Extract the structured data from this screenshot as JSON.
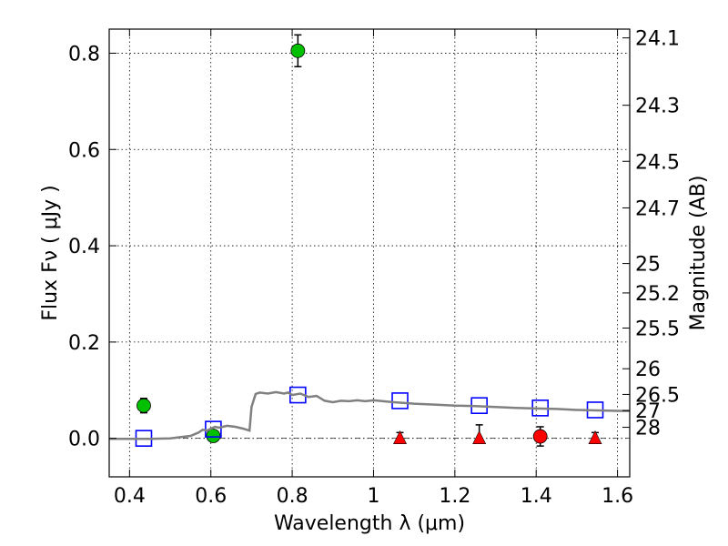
{
  "chart_data": {
    "type": "scatter",
    "xlabel": "Wavelength  λ (μm)",
    "ylabel": "Flux  Fν  ( μJy )",
    "y2label": "Magnitude (AB)",
    "xlim": [
      0.35,
      1.63
    ],
    "ylim": [
      -0.08,
      0.85
    ],
    "grid": true,
    "x_ticks": [
      0.4,
      0.6,
      0.8,
      1.0,
      1.2,
      1.4,
      1.6
    ],
    "x_tick_labels": [
      "0.4",
      "0.6",
      "0.8",
      "1",
      "1.2",
      "1.4",
      "1.6"
    ],
    "y_ticks": [
      0.0,
      0.2,
      0.4,
      0.6,
      0.8
    ],
    "y_tick_labels": [
      "0.0",
      "0.2",
      "0.4",
      "0.6",
      "0.8"
    ],
    "mag_tick_labels": [
      "24.1",
      "24.3",
      "24.5",
      "24.7",
      "25",
      "25.2",
      "25.5",
      "26",
      "26.5",
      "27",
      "28"
    ],
    "series": [
      {
        "marker": "circle",
        "color": "#00c000",
        "points": [
          {
            "x": 0.435,
            "y": 0.068,
            "err": 0.015
          },
          {
            "x": 0.606,
            "y": 0.005,
            "err": 0.01
          },
          {
            "x": 0.814,
            "y": 0.805,
            "err": 0.033
          }
        ]
      },
      {
        "marker": "circle",
        "color": "#ff0000",
        "points": [
          {
            "x": 1.41,
            "y": 0.004,
            "err": 0.02
          }
        ]
      },
      {
        "marker": "triangle",
        "color": "#ff0000",
        "points": [
          {
            "x": 1.065,
            "y": 0.0,
            "err_up": 0.012
          },
          {
            "x": 1.26,
            "y": 0.0,
            "err_up": 0.028
          },
          {
            "x": 1.545,
            "y": 0.0,
            "err_up": 0.012
          }
        ]
      },
      {
        "marker": "open-square",
        "color": "#0000ff",
        "points": [
          {
            "x": 0.435,
            "y": 0.0
          },
          {
            "x": 0.606,
            "y": 0.019
          },
          {
            "x": 0.814,
            "y": 0.09
          },
          {
            "x": 1.065,
            "y": 0.078
          },
          {
            "x": 1.26,
            "y": 0.068
          },
          {
            "x": 1.41,
            "y": 0.063
          },
          {
            "x": 1.545,
            "y": 0.059
          }
        ]
      },
      {
        "marker": "line",
        "color": "#808080",
        "x": [
          0.35,
          0.4,
          0.45,
          0.5,
          0.52,
          0.55,
          0.57,
          0.58,
          0.59,
          0.6,
          0.61,
          0.62,
          0.64,
          0.66,
          0.68,
          0.695,
          0.7,
          0.71,
          0.72,
          0.74,
          0.76,
          0.78,
          0.79,
          0.8,
          0.82,
          0.84,
          0.86,
          0.88,
          0.9,
          0.92,
          0.94,
          0.96,
          0.98,
          1.0,
          1.05,
          1.1,
          1.15,
          1.2,
          1.25,
          1.3,
          1.35,
          1.4,
          1.45,
          1.5,
          1.55,
          1.6,
          1.63
        ],
        "y": [
          -0.001,
          -0.001,
          -0.001,
          0.0,
          0.002,
          0.005,
          0.012,
          0.018,
          0.016,
          0.02,
          0.024,
          0.022,
          0.026,
          0.024,
          0.02,
          0.016,
          0.065,
          0.092,
          0.095,
          0.093,
          0.096,
          0.093,
          0.095,
          0.09,
          0.093,
          0.086,
          0.088,
          0.078,
          0.075,
          0.078,
          0.077,
          0.079,
          0.077,
          0.079,
          0.075,
          0.072,
          0.07,
          0.068,
          0.067,
          0.065,
          0.063,
          0.062,
          0.061,
          0.059,
          0.058,
          0.057,
          0.057
        ]
      }
    ]
  }
}
